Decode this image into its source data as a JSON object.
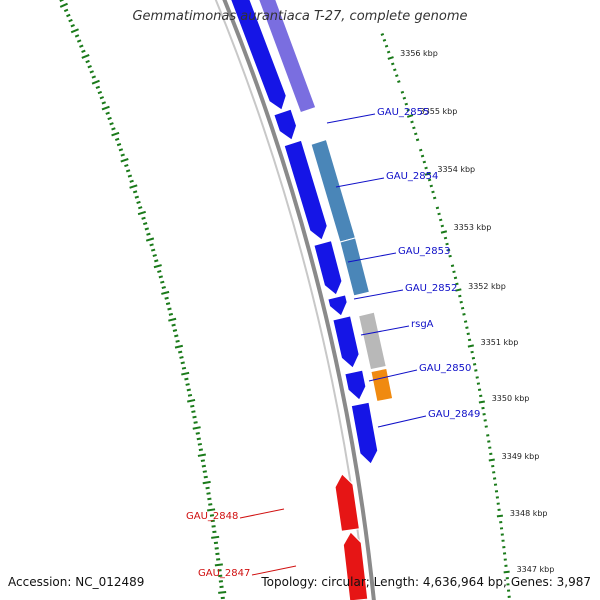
{
  "title": "Gemmatimonas aurantiaca T-27, complete genome",
  "footer": {
    "accession": "Accession: NC_012489",
    "summary": "Topology: circular; Length: 4,636,964 bp; Genes: 3,987"
  },
  "colors": {
    "forward_cds": "#1515e6",
    "reverse_cds": "#e61515",
    "backbone": "#8a8a8a",
    "gc_track": "#1a7a1a",
    "gene_label_blue": "#1010c8",
    "gene_label_red": "#d01010",
    "feature_purple": "#7a6ee0",
    "feature_steelblue": "#4a86b8",
    "feature_grey": "#b8b8b8",
    "feature_orange": "#f08a10"
  },
  "ticks": [
    {
      "label": "3356 kbp"
    },
    {
      "label": "3355 kbp"
    },
    {
      "label": "3354 kbp"
    },
    {
      "label": "3353 kbp"
    },
    {
      "label": "3352 kbp"
    },
    {
      "label": "3351 kbp"
    },
    {
      "label": "3350 kbp"
    },
    {
      "label": "3349 kbp"
    },
    {
      "label": "3348 kbp"
    },
    {
      "label": "3347 kbp"
    }
  ],
  "genes": [
    {
      "name": "GAU_2855",
      "strand": "forward"
    },
    {
      "name": "GAU_2854",
      "strand": "forward"
    },
    {
      "name": "GAU_2853",
      "strand": "forward"
    },
    {
      "name": "GAU_2852",
      "strand": "forward"
    },
    {
      "name": "rsgA",
      "strand": "forward"
    },
    {
      "name": "GAU_2850",
      "strand": "forward"
    },
    {
      "name": "GAU_2849",
      "strand": "forward"
    },
    {
      "name": "GAU_2848",
      "strand": "reverse"
    },
    {
      "name": "GAU_2847",
      "strand": "reverse"
    }
  ]
}
